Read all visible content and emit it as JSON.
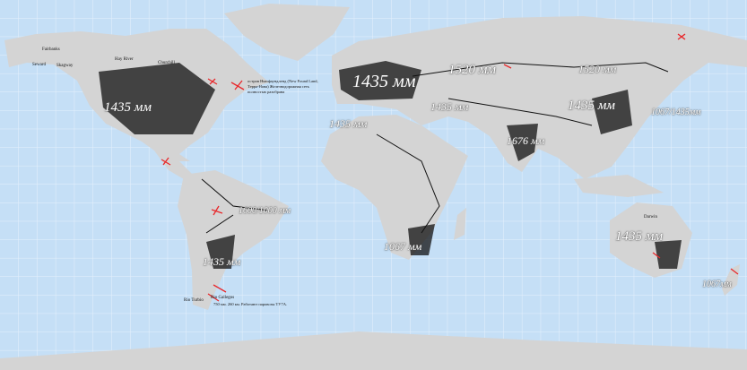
{
  "colors": {
    "ocean": "#c5dff6",
    "grid": "#e8f2fc",
    "land": "#d4d4d4",
    "rail": "#111111",
    "marker": "#e8282b"
  },
  "gauge_labels": [
    {
      "text": "1435 мм"
    },
    {
      "text": "1435 мм"
    },
    {
      "text": "1520 мм"
    },
    {
      "text": "1520 мм"
    },
    {
      "text": "1435 мм"
    },
    {
      "text": "1435 мм"
    },
    {
      "text": "1435 мм"
    },
    {
      "text": "1676 мм"
    },
    {
      "text": "1067/1435мм"
    },
    {
      "text": "1600/1000 мм"
    },
    {
      "text": "1435 мм"
    },
    {
      "text": "1067 мм"
    },
    {
      "text": "1435 мм"
    },
    {
      "text": "1067мм"
    }
  ],
  "cities": [
    "Fairbanks",
    "Seward",
    "Skagway",
    "Hay River",
    "Churchill",
    "Rio Turbio",
    "Rio Gallegos",
    "Darwin"
  ],
  "notes": {
    "newfoundland": "остров Ньюфаундленд (New Found Land, Терра-Нова) Железнодорожная сеть полностью разобрана",
    "patagonia": "750 мм. 260 км. Работают паровозы ТУ7А."
  }
}
